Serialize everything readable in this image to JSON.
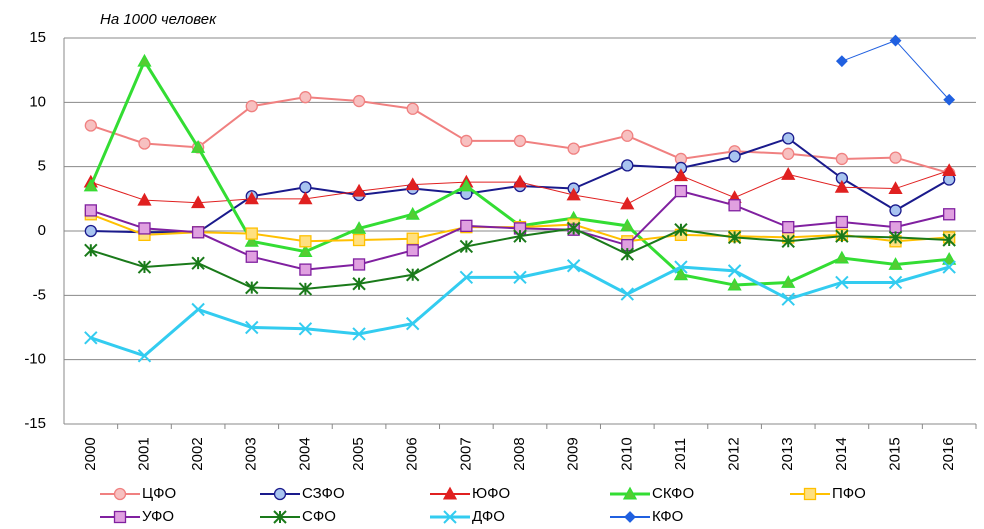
{
  "chart_data": {
    "type": "line",
    "annotation": "На 1000 человек",
    "categories": [
      "2000",
      "2001",
      "2002",
      "2003",
      "2004",
      "2005",
      "2006",
      "2007",
      "2008",
      "2009",
      "2010",
      "2011",
      "2012",
      "2013",
      "2014",
      "2015",
      "2016"
    ],
    "ylim": [
      -15,
      15
    ],
    "yticks": [
      -15,
      -10,
      -5,
      0,
      5,
      10,
      15
    ],
    "grid": true,
    "series": [
      {
        "name": "ЦФО",
        "color": "#f08080",
        "marker": "circle",
        "marker_fill": "#f7c0c0",
        "width": 2,
        "values": [
          8.2,
          6.8,
          6.5,
          9.7,
          10.4,
          10.1,
          9.5,
          7.0,
          7.0,
          6.4,
          7.4,
          5.6,
          6.2,
          6.0,
          5.6,
          5.7,
          4.5
        ]
      },
      {
        "name": "СЗФО",
        "color": "#1a1a8c",
        "marker": "circle",
        "marker_fill": "#a8c4f0",
        "width": 2,
        "values": [
          0.0,
          -0.1,
          -0.1,
          2.7,
          3.4,
          2.8,
          3.3,
          2.9,
          3.5,
          3.3,
          5.1,
          4.9,
          5.8,
          7.2,
          4.1,
          1.6,
          4.0
        ]
      },
      {
        "name": "ЮФО",
        "color": "#e02020",
        "marker": "triangle",
        "marker_fill": "#e02020",
        "width": 1,
        "values": [
          3.8,
          2.4,
          2.2,
          2.5,
          2.5,
          3.1,
          3.6,
          3.8,
          3.8,
          2.8,
          2.1,
          4.3,
          2.6,
          4.4,
          3.4,
          3.3,
          4.7
        ]
      },
      {
        "name": "СКФО",
        "color": "#33dd33",
        "marker": "triangle",
        "marker_fill": "#55cc33",
        "width": 3,
        "values": [
          3.5,
          13.2,
          6.5,
          -0.8,
          -1.6,
          0.2,
          1.3,
          3.5,
          0.4,
          1.0,
          0.4,
          -3.4,
          -4.2,
          -4.0,
          -2.1,
          -2.6,
          -2.2
        ]
      },
      {
        "name": "ПФО",
        "color": "#ffc000",
        "marker": "square",
        "marker_fill": "#ffe080",
        "width": 2,
        "values": [
          1.3,
          -0.3,
          -0.1,
          -0.2,
          -0.8,
          -0.7,
          -0.6,
          0.3,
          0.3,
          0.5,
          -0.8,
          -0.3,
          -0.4,
          -0.5,
          -0.3,
          -0.8,
          -0.5
        ]
      },
      {
        "name": "УФО",
        "color": "#8020a0",
        "marker": "square",
        "marker_fill": "#e0a0e0",
        "width": 2,
        "values": [
          1.6,
          0.2,
          -0.1,
          -2.0,
          -3.0,
          -2.6,
          -1.5,
          0.4,
          0.2,
          0.1,
          -1.1,
          3.1,
          2.0,
          0.3,
          0.7,
          0.3,
          1.3
        ]
      },
      {
        "name": "СФО",
        "color": "#1a7a1a",
        "marker": "star",
        "marker_fill": "#1a7a1a",
        "width": 2,
        "values": [
          -1.5,
          -2.8,
          -2.5,
          -4.4,
          -4.5,
          -4.1,
          -3.4,
          -1.2,
          -0.4,
          0.2,
          -1.8,
          0.1,
          -0.5,
          -0.8,
          -0.4,
          -0.5,
          -0.7
        ]
      },
      {
        "name": "ДФО",
        "color": "#33ccf0",
        "marker": "x",
        "marker_fill": "#33ccf0",
        "width": 3,
        "values": [
          -8.3,
          -9.7,
          -6.1,
          -7.5,
          -7.6,
          -8.0,
          -7.2,
          -3.6,
          -3.6,
          -2.7,
          -4.9,
          -2.8,
          -3.1,
          -5.3,
          -4.0,
          -4.0,
          -2.8
        ]
      },
      {
        "name": "КФО",
        "color": "#2060e0",
        "marker": "diamond",
        "marker_fill": "#2060e0",
        "width": 1,
        "values": [
          null,
          null,
          null,
          null,
          null,
          null,
          null,
          null,
          null,
          null,
          null,
          null,
          null,
          null,
          13.2,
          14.8,
          10.2
        ]
      }
    ]
  }
}
